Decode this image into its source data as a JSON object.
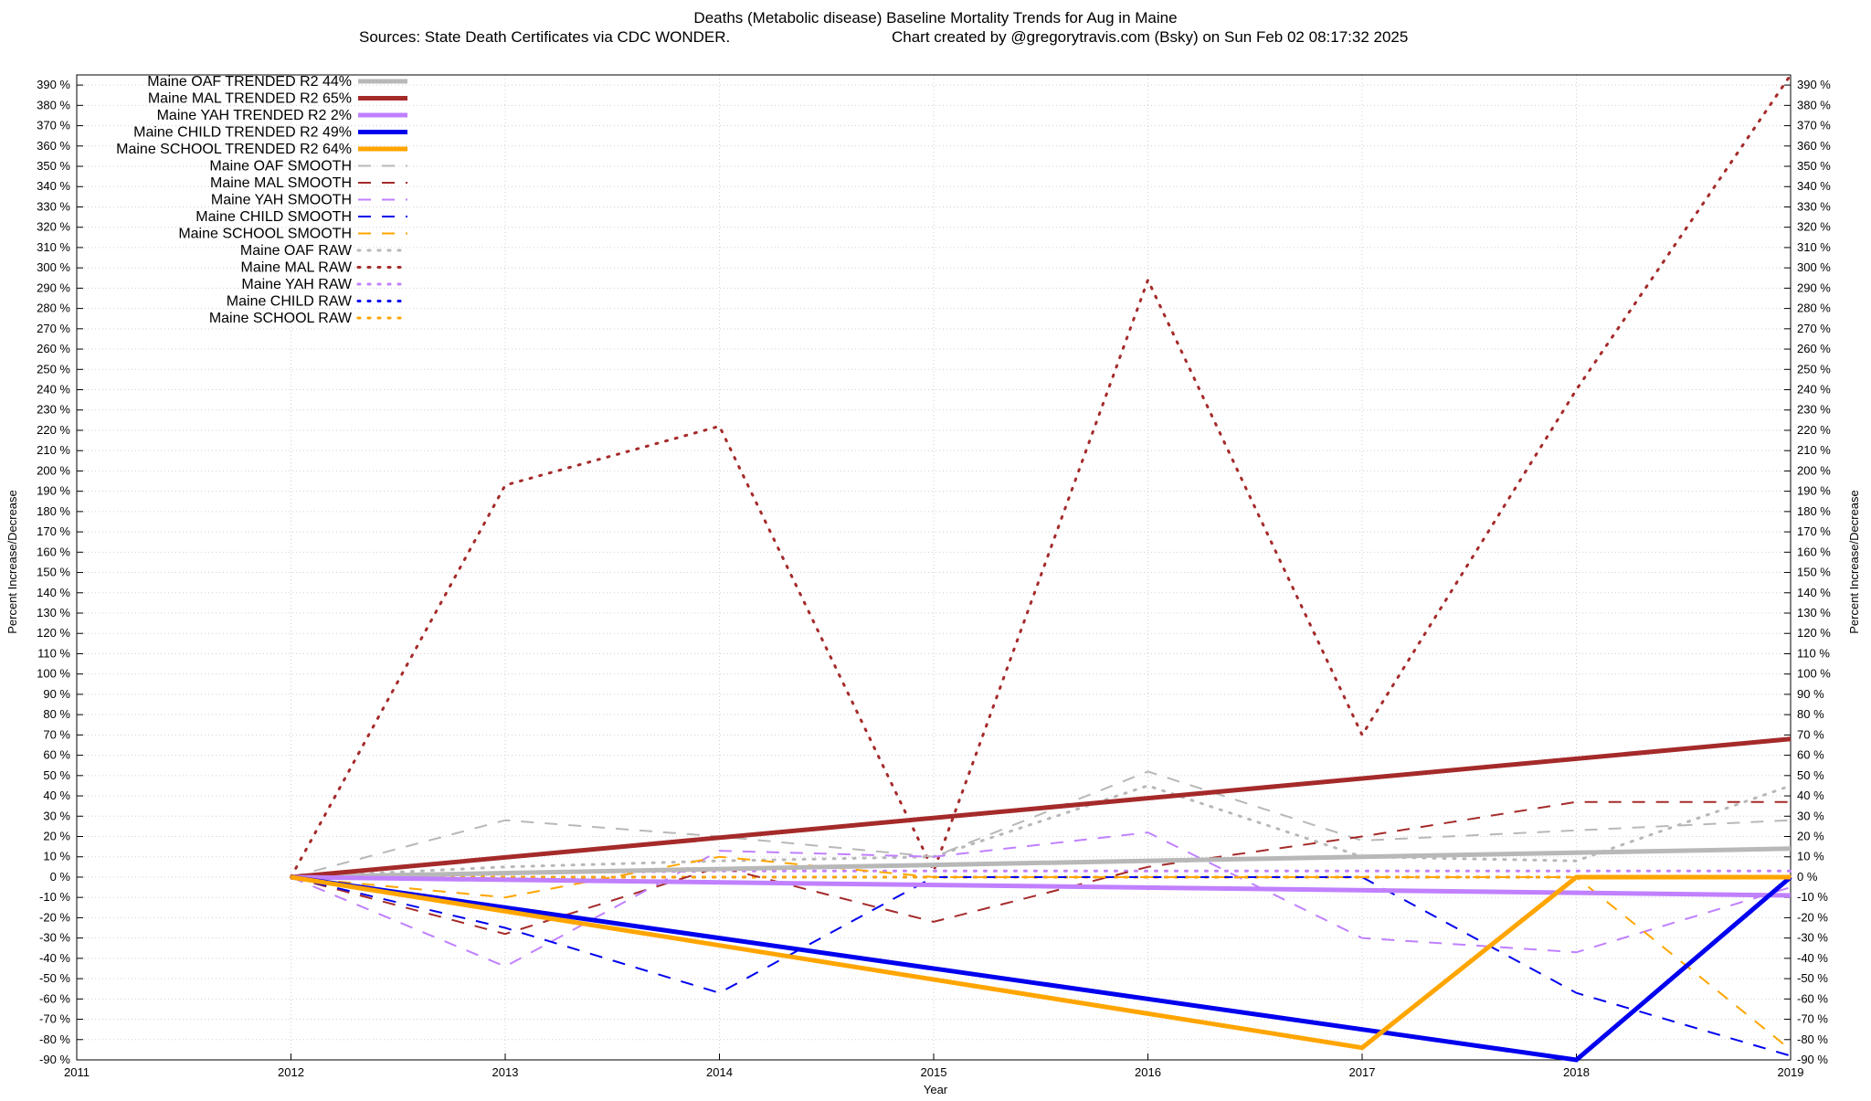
{
  "chart_data": {
    "type": "line",
    "title": "Deaths (Metabolic disease)  Baseline Mortality Trends for Aug in Maine",
    "subtitle_left": "Sources: State Death Certificates via CDC WONDER.",
    "subtitle_right": "Chart created by @gregorytravis.com (Bsky) on Sun Feb 02 08:17:32 2025",
    "xlabel": "Year",
    "ylabel": "Percent Increase/Decrease",
    "xlim": [
      2011,
      2019
    ],
    "ylim": [
      -90,
      395
    ],
    "x_ticks": [
      2011,
      2012,
      2013,
      2014,
      2015,
      2016,
      2017,
      2018,
      2019
    ],
    "y_ticks": [
      -90,
      -80,
      -70,
      -60,
      -50,
      -40,
      -30,
      -20,
      -10,
      0,
      10,
      20,
      30,
      40,
      50,
      60,
      70,
      80,
      90,
      100,
      110,
      120,
      130,
      140,
      150,
      160,
      170,
      180,
      190,
      200,
      210,
      220,
      230,
      240,
      250,
      260,
      270,
      280,
      290,
      300,
      310,
      320,
      330,
      340,
      350,
      360,
      370,
      380,
      390
    ],
    "y_tick_suffix": " %",
    "grid": true,
    "legend_position": "top-left",
    "series": [
      {
        "name": "Maine OAF TRENDED R2  44%",
        "style": "trend",
        "color": "#b8b8b8",
        "x": [
          2012,
          2019
        ],
        "y": [
          0,
          14
        ]
      },
      {
        "name": "Maine MAL TRENDED R2  65%",
        "style": "trend",
        "color": "#a52a2a",
        "x": [
          2012,
          2019
        ],
        "y": [
          0,
          68
        ]
      },
      {
        "name": "Maine YAH TRENDED R2  2%",
        "style": "trend",
        "color": "#c080ff",
        "x": [
          2012,
          2019
        ],
        "y": [
          0,
          -9
        ]
      },
      {
        "name": "Maine CHILD TRENDED R2  49%",
        "style": "trend",
        "color": "#0000ee",
        "x": [
          2012,
          2018,
          2019
        ],
        "y": [
          0,
          -90,
          0
        ]
      },
      {
        "name": "Maine SCHOOL TRENDED R2  64%",
        "style": "trend",
        "color": "#ffa500",
        "x": [
          2012,
          2017,
          2018,
          2019
        ],
        "y": [
          0,
          -84,
          0,
          0
        ]
      },
      {
        "name": "Maine OAF SMOOTH",
        "style": "smooth",
        "color": "#b8b8b8",
        "x": [
          2012,
          2013,
          2014,
          2015,
          2016,
          2017,
          2018,
          2019
        ],
        "y": [
          0,
          28,
          20,
          10,
          52,
          18,
          23,
          28
        ]
      },
      {
        "name": "Maine MAL SMOOTH",
        "style": "smooth",
        "color": "#a52a2a",
        "x": [
          2012,
          2013,
          2014,
          2015,
          2016,
          2017,
          2018,
          2019
        ],
        "y": [
          0,
          -28,
          5,
          -22,
          5,
          20,
          37,
          37
        ]
      },
      {
        "name": "Maine YAH SMOOTH",
        "style": "smooth",
        "color": "#c080ff",
        "x": [
          2012,
          2013,
          2014,
          2015,
          2016,
          2017,
          2018,
          2019
        ],
        "y": [
          0,
          -44,
          13,
          10,
          22,
          -30,
          -37,
          -5
        ]
      },
      {
        "name": "Maine CHILD SMOOTH",
        "style": "smooth",
        "color": "#0000ee",
        "x": [
          2012,
          2013,
          2014,
          2015,
          2016,
          2017,
          2018,
          2019
        ],
        "y": [
          0,
          -25,
          -57,
          0,
          0,
          0,
          -57,
          -88
        ]
      },
      {
        "name": "Maine SCHOOL SMOOTH",
        "style": "smooth",
        "color": "#ffa500",
        "x": [
          2012,
          2013,
          2014,
          2015,
          2016,
          2017,
          2018,
          2019
        ],
        "y": [
          0,
          -10,
          10,
          0,
          0,
          0,
          0,
          -85
        ]
      },
      {
        "name": "Maine OAF RAW",
        "style": "raw",
        "color": "#b8b8b8",
        "x": [
          2012,
          2013,
          2014,
          2015,
          2016,
          2017,
          2018,
          2019
        ],
        "y": [
          0,
          5,
          8,
          10,
          45,
          10,
          8,
          45
        ]
      },
      {
        "name": "Maine MAL RAW",
        "style": "raw",
        "color": "#a52a2a",
        "x": [
          2012,
          2013,
          2014,
          2015,
          2016,
          2017,
          2018,
          2019
        ],
        "y": [
          0,
          193,
          222,
          3,
          294,
          70,
          240,
          395
        ]
      },
      {
        "name": "Maine YAH RAW",
        "style": "raw",
        "color": "#c080ff",
        "x": [
          2012,
          2013,
          2014,
          2015,
          2016,
          2017,
          2018,
          2019
        ],
        "y": [
          0,
          2,
          3,
          3,
          3,
          3,
          3,
          3
        ]
      },
      {
        "name": "Maine CHILD RAW",
        "style": "raw",
        "color": "#0000ee",
        "x": [
          2012,
          2013,
          2014,
          2015,
          2016,
          2017,
          2018,
          2019
        ],
        "y": [
          0,
          0,
          0,
          0,
          0,
          0,
          0,
          0
        ]
      },
      {
        "name": "Maine SCHOOL RAW",
        "style": "raw",
        "color": "#ffa500",
        "x": [
          2012,
          2013,
          2014,
          2015,
          2016,
          2017,
          2018,
          2019
        ],
        "y": [
          0,
          0,
          0,
          0,
          0,
          0,
          0,
          0
        ]
      }
    ]
  }
}
